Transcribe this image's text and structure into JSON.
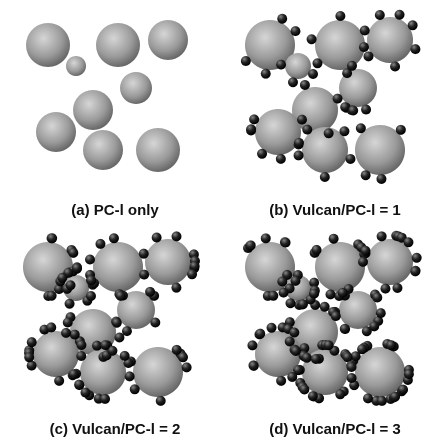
{
  "panels": [
    {
      "caption": "(a) PC-l only"
    },
    {
      "caption": "(b) Vulcan/PC-l = 1"
    },
    {
      "caption": "(c) Vulcan/PC-l = 2"
    },
    {
      "caption": "(d) Vulcan/PC-l = 3"
    }
  ]
}
